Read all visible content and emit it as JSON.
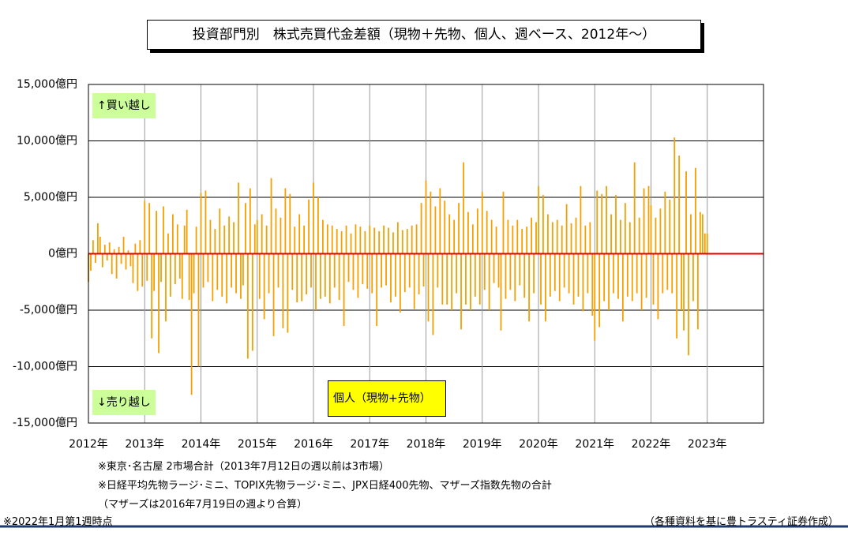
{
  "chart_data": {
    "type": "bar",
    "title": "投資部門別　株式売買代金差額（現物＋先物、個人、週ベース、2012年～）",
    "buy_label": "↑買い越し",
    "sell_label": "↓売り越し",
    "notes": [
      "※東京･名古屋 2市場合計（2013年7月12日の週以前は3市場）",
      "※日経平均先物ラージ･ミニ、TOPIX先物ラージ･ミニ、JPX日経400先物、マザーズ指数先物の合計",
      "（マザーズは2016年7月19日の週より合算）"
    ],
    "date_note": "※2022年1月第1週時点",
    "source_note": "（各種資料を基に豊トラスティ証券作成）",
    "xlim": [
      2012,
      2024
    ],
    "xticks": [
      {
        "value": 2012,
        "label": "2012年"
      },
      {
        "value": 2013,
        "label": "2013年"
      },
      {
        "value": 2014,
        "label": "2014年"
      },
      {
        "value": 2015,
        "label": "2015年"
      },
      {
        "value": 2016,
        "label": "2016年"
      },
      {
        "value": 2017,
        "label": "2017年"
      },
      {
        "value": 2018,
        "label": "2018年"
      },
      {
        "value": 2019,
        "label": "2019年"
      },
      {
        "value": 2020,
        "label": "2020年"
      },
      {
        "value": 2021,
        "label": "2021年"
      },
      {
        "value": 2022,
        "label": "2022年"
      },
      {
        "value": 2023,
        "label": "2023年"
      }
    ],
    "ylim": [
      -15000,
      15000
    ],
    "yticks": [
      {
        "value": -15000,
        "label": "-15,000億円"
      },
      {
        "value": -10000,
        "label": "-10,000億円"
      },
      {
        "value": -5000,
        "label": "-5,000億円"
      },
      {
        "value": 0,
        "label": "0億円"
      },
      {
        "value": 5000,
        "label": "5,000億円"
      },
      {
        "value": 10000,
        "label": "10,000億円"
      },
      {
        "value": 15000,
        "label": "15,000億円"
      }
    ],
    "grid": true,
    "zero_line_color": "#e00000",
    "negative_tick_color": "#e00000",
    "series": [
      {
        "name": "個人（現物+先物）",
        "color": "#f5a000",
        "x": [
          2012,
          2012.042,
          2012.083,
          2012.125,
          2012.167,
          2012.208,
          2012.25,
          2012.292,
          2012.333,
          2012.375,
          2012.417,
          2012.458,
          2012.5,
          2012.542,
          2012.583,
          2012.625,
          2012.667,
          2012.708,
          2012.75,
          2012.792,
          2012.833,
          2012.875,
          2012.917,
          2012.958,
          2013,
          2013.042,
          2013.083,
          2013.125,
          2013.167,
          2013.208,
          2013.25,
          2013.292,
          2013.333,
          2013.375,
          2013.417,
          2013.458,
          2013.5,
          2013.542,
          2013.583,
          2013.625,
          2013.667,
          2013.708,
          2013.75,
          2013.792,
          2013.833,
          2013.875,
          2013.917,
          2013.958,
          2014,
          2014.042,
          2014.083,
          2014.125,
          2014.167,
          2014.208,
          2014.25,
          2014.292,
          2014.333,
          2014.375,
          2014.417,
          2014.458,
          2014.5,
          2014.542,
          2014.583,
          2014.625,
          2014.667,
          2014.708,
          2014.75,
          2014.792,
          2014.833,
          2014.875,
          2014.917,
          2014.958,
          2015,
          2015.042,
          2015.083,
          2015.125,
          2015.167,
          2015.208,
          2015.25,
          2015.292,
          2015.333,
          2015.375,
          2015.417,
          2015.458,
          2015.5,
          2015.542,
          2015.583,
          2015.625,
          2015.667,
          2015.708,
          2015.75,
          2015.792,
          2015.833,
          2015.875,
          2015.917,
          2015.958,
          2016,
          2016.042,
          2016.083,
          2016.125,
          2016.167,
          2016.208,
          2016.25,
          2016.292,
          2016.333,
          2016.375,
          2016.417,
          2016.458,
          2016.5,
          2016.542,
          2016.583,
          2016.625,
          2016.667,
          2016.708,
          2016.75,
          2016.792,
          2016.833,
          2016.875,
          2016.917,
          2016.958,
          2017,
          2017.042,
          2017.083,
          2017.125,
          2017.167,
          2017.208,
          2017.25,
          2017.292,
          2017.333,
          2017.375,
          2017.417,
          2017.458,
          2017.5,
          2017.542,
          2017.583,
          2017.625,
          2017.667,
          2017.708,
          2017.75,
          2017.792,
          2017.833,
          2017.875,
          2017.917,
          2017.958,
          2018,
          2018.042,
          2018.083,
          2018.125,
          2018.167,
          2018.208,
          2018.25,
          2018.292,
          2018.333,
          2018.375,
          2018.417,
          2018.458,
          2018.5,
          2018.542,
          2018.583,
          2018.625,
          2018.667,
          2018.708,
          2018.75,
          2018.792,
          2018.833,
          2018.875,
          2018.917,
          2018.958,
          2019,
          2019.042,
          2019.083,
          2019.125,
          2019.167,
          2019.208,
          2019.25,
          2019.292,
          2019.333,
          2019.375,
          2019.417,
          2019.458,
          2019.5,
          2019.542,
          2019.583,
          2019.625,
          2019.667,
          2019.708,
          2019.75,
          2019.792,
          2019.833,
          2019.875,
          2019.917,
          2019.958,
          2020,
          2020.042,
          2020.083,
          2020.125,
          2020.167,
          2020.208,
          2020.25,
          2020.292,
          2020.333,
          2020.375,
          2020.417,
          2020.458,
          2020.5,
          2020.542,
          2020.583,
          2020.625,
          2020.667,
          2020.708,
          2020.75,
          2020.792,
          2020.833,
          2020.875,
          2020.917,
          2020.958,
          2021,
          2021.042,
          2021.083,
          2021.125,
          2021.167,
          2021.208,
          2021.25,
          2021.292,
          2021.333,
          2021.375,
          2021.417,
          2021.458,
          2021.5,
          2021.542,
          2021.583,
          2021.625,
          2021.667,
          2021.708,
          2021.75,
          2021.792,
          2021.833,
          2021.875,
          2021.917,
          2021.958,
          2022,
          2022.042,
          2022.083,
          2022.125,
          2022.167,
          2022.208,
          2022.25,
          2022.292,
          2022.333,
          2022.375,
          2022.417,
          2022.458,
          2022.5,
          2022.542,
          2022.583,
          2022.625,
          2022.667,
          2022.708,
          2022.75,
          2022.792,
          2022.833,
          2022.875,
          2022.917,
          2022.958,
          2023
        ],
        "values": [
          -2500,
          -1500,
          1200,
          -800,
          2700,
          1500,
          -1200,
          800,
          -600,
          1000,
          -1800,
          400,
          -2200,
          600,
          -900,
          1500,
          -1400,
          300,
          -1100,
          -2600,
          900,
          -3300,
          1200,
          -2900,
          4700,
          -2400,
          4500,
          -7500,
          -3300,
          3800,
          -8800,
          -2500,
          4200,
          -6000,
          1800,
          -3800,
          3500,
          -2700,
          2600,
          -2200,
          -4000,
          2500,
          3900,
          -4100,
          -12500,
          -3500,
          2400,
          -10000,
          5400,
          -3000,
          5600,
          -2500,
          3000,
          -4200,
          2200,
          -3200,
          4000,
          -3800,
          2500,
          -4400,
          3300,
          -3000,
          2800,
          -3500,
          6300,
          -4000,
          -2800,
          4500,
          -9300,
          5800,
          -8600,
          2600,
          3000,
          -4000,
          3500,
          -5800,
          2500,
          -3500,
          6700,
          -7300,
          4000,
          -3000,
          3200,
          -6600,
          5800,
          -7000,
          5300,
          -3200,
          2400,
          -4300,
          3500,
          -4200,
          2500,
          -3600,
          4800,
          -3000,
          6300,
          -5000,
          5000,
          -4000,
          3000,
          -3800,
          2600,
          -4400,
          2500,
          -3000,
          2200,
          -4100,
          2000,
          -6400,
          2500,
          -2500,
          1800,
          -3200,
          2600,
          -3900,
          2400,
          -2700,
          2000,
          -3100,
          2500,
          -3500,
          2300,
          -6400,
          2000,
          -3000,
          2500,
          -2800,
          2300,
          -4300,
          1900,
          -3800,
          2800,
          -5200,
          2100,
          -3400,
          2200,
          -3000,
          2500,
          -4900,
          2600,
          -3600,
          4500,
          -2900,
          6500,
          -6000,
          5500,
          -7200,
          4200,
          -3000,
          5800,
          -4500,
          4700,
          -4500,
          3500,
          -5000,
          3000,
          -3500,
          4500,
          -6700,
          8100,
          -4500,
          3700,
          -5000,
          2600,
          -3800,
          4000,
          -4500,
          5500,
          -3200,
          3800,
          -5000,
          3000,
          -2600,
          2400,
          -3000,
          -6800,
          5500,
          -4000,
          3000,
          -3200,
          2500,
          -4200,
          3000,
          -2800,
          2200,
          -3900,
          2400,
          -6000,
          3200,
          -3500,
          2800,
          6000,
          -4500,
          5200,
          -6000,
          3500,
          -3800,
          2800,
          -3300,
          3000,
          -4200,
          2500,
          -3000,
          4400,
          -3500,
          2700,
          -4500,
          3200,
          -3800,
          6000,
          -5100,
          2500,
          -3500,
          2800,
          -5500,
          -7700,
          5600,
          -6500,
          5300,
          -4200,
          6000,
          -5000,
          3500,
          -3500,
          5200,
          -4000,
          3000,
          -6000,
          4500,
          -3800,
          2800,
          -4200,
          8100,
          -3500,
          3200,
          -5000,
          5800,
          -3900,
          6000,
          4300,
          -4500,
          3200,
          -5800,
          4000,
          -3500,
          5500,
          -3200,
          4800,
          -3500,
          10300,
          -7500,
          8700,
          -5000,
          -6800,
          7300,
          -9000,
          3500,
          -4200,
          7600,
          -6700,
          3700,
          3500,
          1800,
          1800
        ]
      }
    ]
  }
}
